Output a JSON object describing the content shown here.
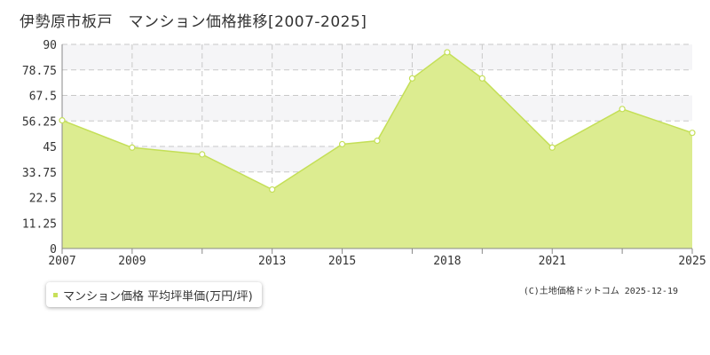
{
  "title": "伊勢原市板戸　マンション価格推移[2007-2025]",
  "legend": {
    "label": "マンション価格 平均坪単価(万円/坪)"
  },
  "credit": "(C)土地価格ドットコム 2025-12-19",
  "colors": {
    "fill": "#dcec90",
    "line": "#c4df57",
    "point_fill": "#ffffff",
    "grid": "#c8c8c8",
    "band": "#f5f5f7",
    "axis": "#888888"
  },
  "chart_data": {
    "type": "area",
    "title": "伊勢原市板戸　マンション価格推移[2007-2025]",
    "xlabel": "",
    "ylabel": "",
    "x": [
      2007,
      2009,
      2011,
      2013,
      2015,
      2016,
      2017,
      2018,
      2019,
      2021,
      2023,
      2025
    ],
    "series": [
      {
        "name": "マンション価格 平均坪単価(万円/坪)",
        "values": [
          56.5,
          44.5,
          41.5,
          26.0,
          46.0,
          47.5,
          75.0,
          86.5,
          75.0,
          44.5,
          61.5,
          51.0
        ]
      }
    ],
    "xlim": [
      2007,
      2025
    ],
    "ylim": [
      0,
      90
    ],
    "xticks": [
      "2007",
      "2009",
      "2013",
      "2015",
      "2018",
      "2021",
      "2025"
    ],
    "yticks": [
      "0",
      "11.25",
      "22.5",
      "33.75",
      "45",
      "56.25",
      "67.5",
      "78.75",
      "90"
    ],
    "grid": true,
    "legend_position": "bottom-left"
  }
}
